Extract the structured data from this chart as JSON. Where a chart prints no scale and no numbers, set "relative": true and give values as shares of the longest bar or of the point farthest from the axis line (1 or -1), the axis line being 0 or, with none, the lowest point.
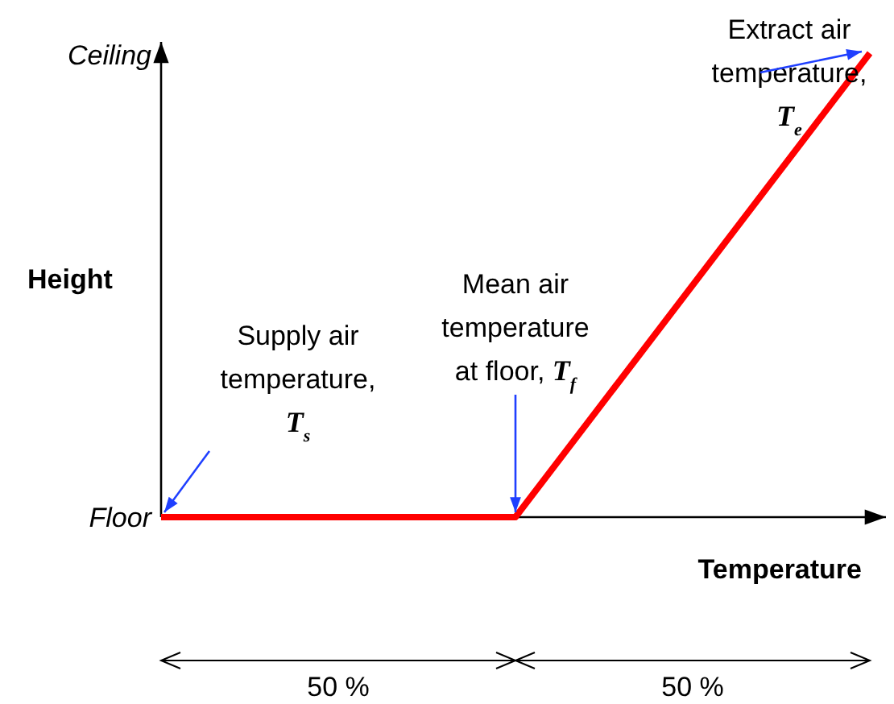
{
  "chart_data": {
    "type": "line",
    "xlabel": "Temperature",
    "ylabel": "Height",
    "categories": [
      null,
      null,
      null
    ],
    "relative": true,
    "marker": "none",
    "line_style": "solid",
    "series": [
      {
        "color": "#ff0000",
        "values": [
          0,
          0,
          1
        ]
      }
    ],
    "annotations": [
      "Ceiling",
      "Floor",
      "Supply air temperature, T$_{s}$",
      "Mean air temperature at floor, T$_{f}$",
      "Extract air temperature, T$_{e}$",
      "50 %",
      "50 %"
    ]
  }
}
